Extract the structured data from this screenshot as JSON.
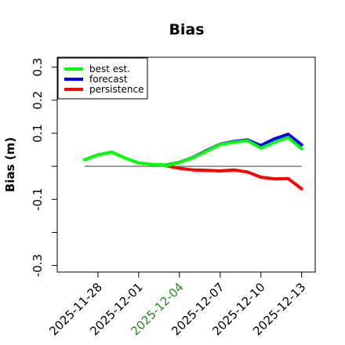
{
  "chart_data": {
    "type": "line",
    "title": "Bias",
    "ylabel": "Bias (m)",
    "xlabel": "",
    "ylim": [
      -0.32,
      0.33
    ],
    "yticks": [
      -0.3,
      -0.2,
      -0.1,
      0.0,
      0.1,
      0.2,
      0.3
    ],
    "ytick_labels": [
      "-0.3",
      "",
      "-0.1",
      "",
      "0.1",
      "0.2",
      "0.3"
    ],
    "xlim": [
      "2025-11-25",
      "2025-12-14"
    ],
    "xticks": [
      "2025-11-28",
      "2025-12-01",
      "2025-12-04",
      "2025-12-07",
      "2025-12-10",
      "2025-12-13"
    ],
    "highlight_tick": "2025-12-04",
    "highlight_color": "#228B22",
    "reference_line": 0.0,
    "legend_position": "top-left",
    "series": [
      {
        "name": "best est.",
        "color": "#00ff00",
        "x": [
          "2025-11-27",
          "2025-11-28",
          "2025-11-29",
          "2025-11-30",
          "2025-12-01",
          "2025-12-02",
          "2025-12-03",
          "2025-12-04"
        ],
        "y": [
          0.02,
          0.035,
          0.043,
          0.025,
          0.01,
          0.006,
          0.004,
          0.012
        ]
      },
      {
        "name": "forecast",
        "color": "#0000ff",
        "x": [
          "2025-12-03",
          "2025-12-04",
          "2025-12-05",
          "2025-12-06",
          "2025-12-07",
          "2025-12-08",
          "2025-12-09",
          "2025-12-10",
          "2025-12-11",
          "2025-12-12",
          "2025-12-13"
        ],
        "y": [
          0.002,
          0.012,
          0.027,
          0.048,
          0.067,
          0.075,
          0.08,
          0.063,
          0.083,
          0.097,
          0.065
        ]
      },
      {
        "name": "persistence",
        "color": "#ff0000",
        "x": [
          "2025-12-03",
          "2025-12-04",
          "2025-12-05",
          "2025-12-06",
          "2025-12-07",
          "2025-12-08",
          "2025-12-09",
          "2025-12-10",
          "2025-12-11",
          "2025-12-12",
          "2025-12-13"
        ],
        "y": [
          0.002,
          -0.006,
          -0.011,
          -0.012,
          -0.014,
          -0.011,
          -0.017,
          -0.033,
          -0.038,
          -0.037,
          -0.068
        ]
      },
      {
        "name": "best est.",
        "color": "#00ff00",
        "x": [
          "2025-12-03",
          "2025-12-04",
          "2025-12-05",
          "2025-12-06",
          "2025-12-07",
          "2025-12-08",
          "2025-12-09",
          "2025-12-10",
          "2025-12-11",
          "2025-12-12",
          "2025-12-13"
        ],
        "y": [
          0.001,
          0.012,
          0.026,
          0.046,
          0.066,
          0.073,
          0.078,
          0.055,
          0.073,
          0.087,
          0.053
        ]
      }
    ],
    "legend": [
      {
        "name": "best est.",
        "color": "#00ff00"
      },
      {
        "name": "forecast",
        "color": "#0000ff"
      },
      {
        "name": "persistence",
        "color": "#ff0000"
      }
    ]
  }
}
